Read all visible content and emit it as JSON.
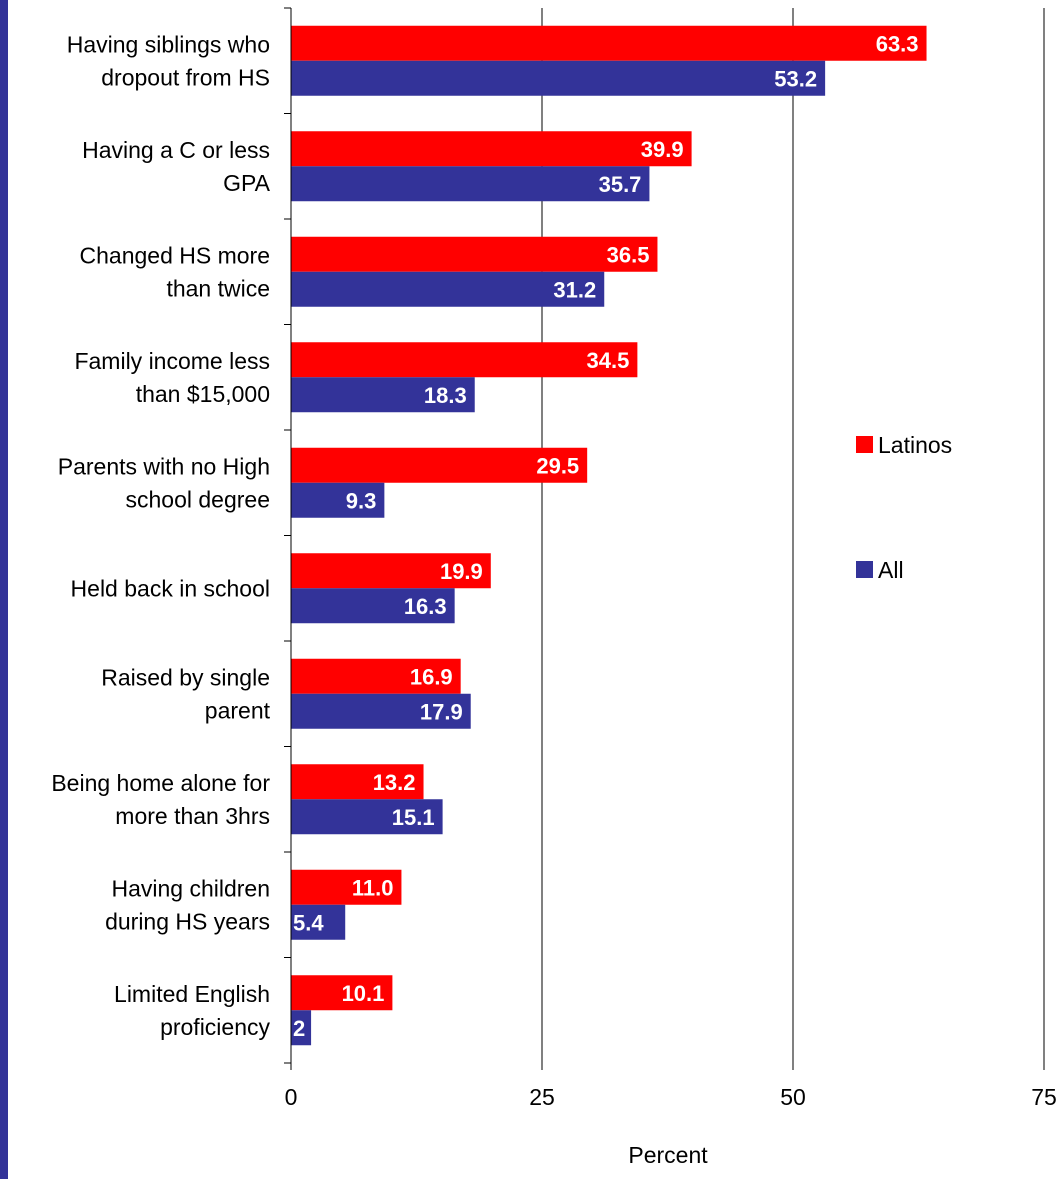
{
  "chart_data": {
    "type": "bar",
    "orientation": "horizontal",
    "categories": [
      [
        "Having siblings who",
        "dropout from HS"
      ],
      [
        "Having a C or less",
        "GPA"
      ],
      [
        "Changed HS more",
        "than twice"
      ],
      [
        "Family income less",
        "than $15,000"
      ],
      [
        "Parents with no High",
        "school degree"
      ],
      [
        "Held back in school"
      ],
      [
        "Raised by single",
        "parent"
      ],
      [
        "Being home alone for",
        "more than 3hrs"
      ],
      [
        "Having children",
        "during HS years"
      ],
      [
        "Limited English",
        "proficiency"
      ]
    ],
    "series": [
      {
        "name": "Latinos",
        "color": "#ff0000",
        "values": [
          63.3,
          39.9,
          36.5,
          34.5,
          29.5,
          19.9,
          16.9,
          13.2,
          11.0,
          10.1
        ],
        "labels": [
          "63.3",
          "39.9",
          "36.5",
          "34.5",
          "29.5",
          "19.9",
          "16.9",
          "13.2",
          "11.0",
          "10.1"
        ]
      },
      {
        "name": "All",
        "color": "#333399",
        "values": [
          53.2,
          35.7,
          31.2,
          18.3,
          9.3,
          16.3,
          17.9,
          15.1,
          5.4,
          2
        ],
        "labels": [
          "53.2",
          "35.7",
          "31.2",
          "18.3",
          "9.3",
          "16.3",
          "17.9",
          "15.1",
          "5.4",
          "2"
        ]
      }
    ],
    "xlabel": "Percent",
    "xlim": [
      0,
      75
    ],
    "xticks": [
      "0",
      "25",
      "50",
      "75"
    ],
    "xtick_values": [
      0,
      25,
      50,
      75
    ],
    "grid": "vertical major gridlines",
    "legend_position": "right"
  },
  "accent_stripe_color": "#333399"
}
